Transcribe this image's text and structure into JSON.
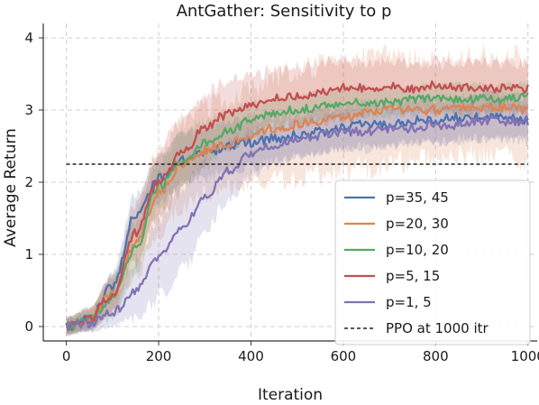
{
  "chart_data": {
    "type": "line",
    "title": "AntGather: Sensitivity to p",
    "xlabel": "Iteration",
    "ylabel": "Average Return",
    "xlim": [
      -50,
      1020
    ],
    "ylim": [
      -0.2,
      4.2
    ],
    "xticks": [
      0,
      200,
      400,
      600,
      800,
      1000
    ],
    "yticks": [
      0,
      1,
      2,
      3,
      4
    ],
    "grid": true,
    "legend_position": "bottom-right",
    "baseline": {
      "name": "PPO at 1000 itr",
      "value": 2.25,
      "x_range": [
        0,
        1000
      ],
      "color": "#222222"
    },
    "x": [
      0,
      50,
      100,
      150,
      200,
      250,
      300,
      350,
      400,
      450,
      500,
      550,
      600,
      650,
      700,
      750,
      800,
      850,
      900,
      950,
      1000
    ],
    "series": [
      {
        "name": "p=35, 45",
        "color": "#4c72b0",
        "values": [
          0.0,
          0.1,
          0.55,
          1.55,
          2.05,
          2.3,
          2.4,
          2.5,
          2.55,
          2.6,
          2.65,
          2.7,
          2.75,
          2.8,
          2.8,
          2.85,
          2.85,
          2.9,
          2.9,
          2.9,
          2.85
        ],
        "band": [
          0.12,
          0.15,
          0.2,
          0.3,
          0.3,
          0.35,
          0.35,
          0.35,
          0.35,
          0.3,
          0.3,
          0.3,
          0.3,
          0.3,
          0.3,
          0.3,
          0.3,
          0.3,
          0.3,
          0.3,
          0.3
        ]
      },
      {
        "name": "p=20, 30",
        "color": "#dd8452",
        "values": [
          0.0,
          0.1,
          0.45,
          1.15,
          1.85,
          2.25,
          2.45,
          2.55,
          2.65,
          2.75,
          2.8,
          2.85,
          2.9,
          2.95,
          3.0,
          3.0,
          3.0,
          3.05,
          3.05,
          3.05,
          3.0
        ],
        "band": [
          0.12,
          0.15,
          0.25,
          0.45,
          0.55,
          0.6,
          0.6,
          0.6,
          0.65,
          0.7,
          0.75,
          0.75,
          0.75,
          0.75,
          0.75,
          0.7,
          0.7,
          0.7,
          0.7,
          0.7,
          0.7
        ]
      },
      {
        "name": "p=10, 20",
        "color": "#55a868",
        "values": [
          0.0,
          0.1,
          0.4,
          1.1,
          1.95,
          2.3,
          2.55,
          2.7,
          2.85,
          2.95,
          3.0,
          3.05,
          3.1,
          3.1,
          3.1,
          3.15,
          3.15,
          3.15,
          3.15,
          3.15,
          3.2
        ],
        "band": [
          0.12,
          0.15,
          0.3,
          0.35,
          0.35,
          0.35,
          0.3,
          0.25,
          0.25,
          0.2,
          0.2,
          0.2,
          0.2,
          0.2,
          0.2,
          0.2,
          0.2,
          0.2,
          0.2,
          0.2,
          0.2
        ]
      },
      {
        "name": "p=5, 15",
        "color": "#c44e52",
        "values": [
          0.0,
          0.1,
          0.45,
          1.3,
          2.0,
          2.4,
          2.75,
          2.95,
          3.05,
          3.15,
          3.2,
          3.25,
          3.3,
          3.3,
          3.35,
          3.3,
          3.35,
          3.3,
          3.3,
          3.3,
          3.3
        ],
        "band": [
          0.12,
          0.15,
          0.25,
          0.4,
          0.45,
          0.5,
          0.5,
          0.45,
          0.4,
          0.4,
          0.4,
          0.4,
          0.4,
          0.35,
          0.35,
          0.35,
          0.35,
          0.35,
          0.35,
          0.35,
          0.35
        ]
      },
      {
        "name": "p=1, 5",
        "color": "#8172b3",
        "values": [
          0.0,
          0.05,
          0.2,
          0.5,
          0.95,
          1.35,
          1.8,
          2.15,
          2.4,
          2.5,
          2.6,
          2.65,
          2.7,
          2.7,
          2.75,
          2.75,
          2.8,
          2.8,
          2.85,
          2.85,
          2.85
        ],
        "band": [
          0.1,
          0.12,
          0.2,
          0.4,
          0.55,
          0.6,
          0.5,
          0.4,
          0.3,
          0.25,
          0.25,
          0.25,
          0.25,
          0.25,
          0.25,
          0.25,
          0.25,
          0.25,
          0.25,
          0.25,
          0.25
        ]
      }
    ]
  }
}
